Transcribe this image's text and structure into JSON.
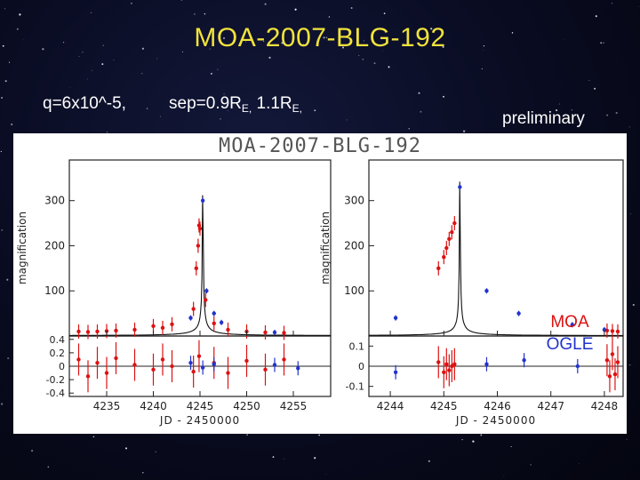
{
  "slide": {
    "title": "MOA-2007-BLG-192",
    "q_text": "q=6x10^-5,",
    "sep_main": "sep=0.9R",
    "sep_sub1": "E,",
    "sep_mid": " 1.1R",
    "sep_sub2": "E,",
    "preliminary": "preliminary"
  },
  "colors": {
    "title": "#f0e23c",
    "moa": "#dd1111",
    "ogle": "#2233cc",
    "model": "#111111"
  },
  "chart_data": [
    {
      "type": "scatter",
      "title": "MOA-2007-BLG-192",
      "xlabel": "JD - 2450000",
      "ylabel": "magnification",
      "xlim": [
        4231,
        4259
      ],
      "ylim": [
        0,
        390
      ],
      "xticks": [
        "4235",
        "4240",
        "4245",
        "4250",
        "4255"
      ],
      "yticks": [
        "100",
        "200",
        "300"
      ],
      "model_peak": 358,
      "series": [
        {
          "name": "MOA",
          "x": [
            4232,
            4233,
            4234,
            4235,
            4236,
            4238,
            4240,
            4241,
            4242,
            4244.3,
            4244.6,
            4244.8,
            4244.9,
            4245.0,
            4245.6,
            4246.5,
            4248,
            4250,
            4252,
            4254
          ],
          "y": [
            10,
            9,
            10,
            11,
            12,
            14,
            22,
            18,
            26,
            60,
            150,
            200,
            245,
            238,
            80,
            28,
            14,
            10,
            8,
            7
          ]
        },
        {
          "name": "OGLE",
          "x": [
            4244.0,
            4245.3,
            4245.7,
            4246.5,
            4247.3,
            4253
          ],
          "y": [
            40,
            300,
            100,
            50,
            30,
            8
          ]
        }
      ],
      "residuals": {
        "ylim": [
          -0.45,
          0.45
        ],
        "yticks": [
          "0.4",
          "0.2",
          "0",
          "-0.2",
          "-0.4"
        ],
        "moa_x": [
          4232,
          4233,
          4234,
          4235,
          4236,
          4238,
          4240,
          4241,
          4242,
          4244.3,
          4244.9,
          4246.5,
          4248,
          4250,
          4252,
          4254
        ],
        "moa_y": [
          0.1,
          -0.15,
          0.05,
          -0.1,
          0.12,
          0.02,
          -0.05,
          0.1,
          0.0,
          -0.08,
          0.15,
          0.05,
          -0.1,
          0.08,
          -0.05,
          0.1
        ],
        "ogle_x": [
          4244.0,
          4245.3,
          4246.5,
          4253,
          4255.5
        ],
        "ogle_y": [
          0.05,
          -0.02,
          0.03,
          0.02,
          -0.03
        ]
      }
    },
    {
      "type": "scatter",
      "xlabel": "JD - 2450000",
      "ylabel": "magnification",
      "xlim": [
        4243.6,
        4248.35
      ],
      "ylim": [
        0,
        390
      ],
      "xticks": [
        "4244",
        "4245",
        "4246",
        "4247",
        "4248"
      ],
      "yticks": [
        "100",
        "200",
        "300"
      ],
      "model_peak": 358,
      "series": [
        {
          "name": "MOA",
          "x": [
            4244.9,
            4245.0,
            4245.05,
            4245.1,
            4245.15,
            4245.2,
            4248.05,
            4248.15,
            4248.25
          ],
          "y": [
            150,
            175,
            195,
            215,
            230,
            250,
            12,
            11,
            10
          ]
        },
        {
          "name": "OGLE",
          "x": [
            4244.1,
            4245.3,
            4245.8,
            4246.4,
            4247.4,
            4248.0
          ],
          "y": [
            40,
            330,
            100,
            50,
            25,
            14
          ]
        }
      ],
      "residuals": {
        "ylim": [
          -0.15,
          0.15
        ],
        "yticks": [
          "0.1",
          "0",
          "-0.1"
        ],
        "moa_x": [
          4244.9,
          4245.0,
          4245.05,
          4245.1,
          4245.15,
          4245.2,
          4248.05,
          4248.1,
          4248.15,
          4248.2,
          4248.25
        ],
        "moa_y": [
          0.02,
          -0.03,
          0.01,
          -0.02,
          0.0,
          0.01,
          0.03,
          -0.05,
          0.06,
          -0.04,
          0.02
        ],
        "ogle_x": [
          4244.1,
          4245.8,
          4246.5,
          4247.5
        ],
        "ogle_y": [
          -0.03,
          0.01,
          0.03,
          0.0
        ]
      }
    }
  ],
  "legend": {
    "moa": "MOA",
    "ogle": "OGLE"
  }
}
